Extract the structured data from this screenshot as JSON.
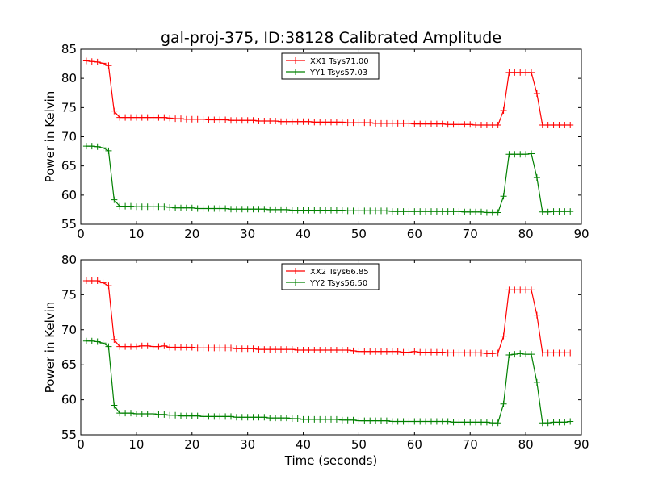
{
  "title": "gal-proj-375, ID:38128 Calibrated Amplitude",
  "chart_data": [
    {
      "type": "line",
      "ylabel": "Power in Kelvin",
      "xlabel": "",
      "xlim": [
        0,
        90
      ],
      "ylim": [
        55,
        85
      ],
      "xticks": [
        0,
        10,
        20,
        30,
        40,
        50,
        60,
        70,
        80,
        90
      ],
      "yticks": [
        55,
        60,
        65,
        70,
        75,
        80,
        85
      ],
      "legend_position": "top-center",
      "x": [
        1,
        2,
        3,
        4,
        5,
        6,
        7,
        8,
        9,
        10,
        11,
        12,
        13,
        14,
        15,
        16,
        17,
        18,
        19,
        20,
        21,
        22,
        23,
        24,
        25,
        26,
        27,
        28,
        29,
        30,
        31,
        32,
        33,
        34,
        35,
        36,
        37,
        38,
        39,
        40,
        41,
        42,
        43,
        44,
        45,
        46,
        47,
        48,
        49,
        50,
        51,
        52,
        53,
        54,
        55,
        56,
        57,
        58,
        59,
        60,
        61,
        62,
        63,
        64,
        65,
        66,
        67,
        68,
        69,
        70,
        71,
        72,
        73,
        74,
        75,
        76,
        77,
        78,
        79,
        80,
        81,
        82,
        83,
        84,
        85,
        86,
        87,
        88
      ],
      "series": [
        {
          "name": "XX1 Tsys71.00",
          "color": "#ff0000",
          "values": [
            83.0,
            82.9,
            82.8,
            82.6,
            82.2,
            74.4,
            73.3,
            73.3,
            73.3,
            73.3,
            73.3,
            73.3,
            73.3,
            73.3,
            73.3,
            73.2,
            73.1,
            73.1,
            73.0,
            73.0,
            73.0,
            73.0,
            72.9,
            72.9,
            72.9,
            72.9,
            72.8,
            72.8,
            72.8,
            72.8,
            72.8,
            72.7,
            72.7,
            72.7,
            72.7,
            72.6,
            72.6,
            72.6,
            72.6,
            72.6,
            72.6,
            72.5,
            72.5,
            72.5,
            72.5,
            72.5,
            72.5,
            72.4,
            72.4,
            72.4,
            72.4,
            72.4,
            72.3,
            72.3,
            72.3,
            72.3,
            72.3,
            72.3,
            72.3,
            72.2,
            72.2,
            72.2,
            72.2,
            72.2,
            72.2,
            72.1,
            72.1,
            72.1,
            72.1,
            72.1,
            72.0,
            72.0,
            72.0,
            72.0,
            72.0,
            74.5,
            81.0,
            81.0,
            81.0,
            81.0,
            81.0,
            77.4,
            72.0,
            72.0,
            72.0,
            72.0,
            72.0,
            72.0
          ]
        },
        {
          "name": "YY1 Tsys57.03",
          "color": "#008000",
          "values": [
            68.4,
            68.4,
            68.3,
            68.1,
            67.6,
            59.2,
            58.1,
            58.1,
            58.1,
            58.0,
            58.0,
            58.0,
            58.0,
            58.0,
            58.0,
            57.9,
            57.8,
            57.8,
            57.8,
            57.8,
            57.7,
            57.7,
            57.7,
            57.7,
            57.7,
            57.7,
            57.6,
            57.6,
            57.6,
            57.6,
            57.6,
            57.6,
            57.6,
            57.5,
            57.5,
            57.5,
            57.5,
            57.4,
            57.4,
            57.4,
            57.4,
            57.4,
            57.4,
            57.4,
            57.4,
            57.4,
            57.4,
            57.3,
            57.3,
            57.3,
            57.3,
            57.3,
            57.3,
            57.3,
            57.3,
            57.2,
            57.2,
            57.2,
            57.2,
            57.2,
            57.2,
            57.2,
            57.2,
            57.2,
            57.2,
            57.2,
            57.2,
            57.2,
            57.1,
            57.1,
            57.1,
            57.1,
            57.0,
            57.0,
            57.0,
            59.8,
            67.0,
            67.0,
            67.0,
            67.0,
            67.1,
            63.0,
            57.1,
            57.1,
            57.2,
            57.2,
            57.2,
            57.2
          ]
        }
      ]
    },
    {
      "type": "line",
      "ylabel": "Power in Kelvin",
      "xlabel": "Time (seconds)",
      "xlim": [
        0,
        90
      ],
      "ylim": [
        55,
        80
      ],
      "xticks": [
        0,
        10,
        20,
        30,
        40,
        50,
        60,
        70,
        80,
        90
      ],
      "yticks": [
        55,
        60,
        65,
        70,
        75,
        80
      ],
      "legend_position": "top-center",
      "x": [
        1,
        2,
        3,
        4,
        5,
        6,
        7,
        8,
        9,
        10,
        11,
        12,
        13,
        14,
        15,
        16,
        17,
        18,
        19,
        20,
        21,
        22,
        23,
        24,
        25,
        26,
        27,
        28,
        29,
        30,
        31,
        32,
        33,
        34,
        35,
        36,
        37,
        38,
        39,
        40,
        41,
        42,
        43,
        44,
        45,
        46,
        47,
        48,
        49,
        50,
        51,
        52,
        53,
        54,
        55,
        56,
        57,
        58,
        59,
        60,
        61,
        62,
        63,
        64,
        65,
        66,
        67,
        68,
        69,
        70,
        71,
        72,
        73,
        74,
        75,
        76,
        77,
        78,
        79,
        80,
        81,
        82,
        83,
        84,
        85,
        86,
        87,
        88
      ],
      "series": [
        {
          "name": "XX2 Tsys66.85",
          "color": "#ff0000",
          "values": [
            77.0,
            77.0,
            77.0,
            76.7,
            76.3,
            68.6,
            67.6,
            67.6,
            67.6,
            67.6,
            67.7,
            67.7,
            67.6,
            67.6,
            67.7,
            67.5,
            67.5,
            67.5,
            67.5,
            67.5,
            67.4,
            67.4,
            67.4,
            67.4,
            67.4,
            67.4,
            67.4,
            67.3,
            67.3,
            67.3,
            67.3,
            67.2,
            67.2,
            67.2,
            67.2,
            67.2,
            67.2,
            67.2,
            67.1,
            67.1,
            67.1,
            67.1,
            67.1,
            67.1,
            67.1,
            67.1,
            67.1,
            67.1,
            67.0,
            66.9,
            66.9,
            66.9,
            66.9,
            66.9,
            66.9,
            66.9,
            66.9,
            66.8,
            66.8,
            66.9,
            66.8,
            66.8,
            66.8,
            66.8,
            66.8,
            66.7,
            66.7,
            66.7,
            66.7,
            66.7,
            66.7,
            66.7,
            66.6,
            66.6,
            66.7,
            69.1,
            75.7,
            75.7,
            75.7,
            75.7,
            75.7,
            72.1,
            66.7,
            66.7,
            66.7,
            66.7,
            66.7,
            66.7
          ]
        },
        {
          "name": "YY2 Tsys56.50",
          "color": "#008000",
          "values": [
            68.4,
            68.4,
            68.3,
            68.1,
            67.6,
            59.2,
            58.1,
            58.1,
            58.1,
            58.0,
            58.0,
            58.0,
            58.0,
            57.9,
            57.9,
            57.8,
            57.8,
            57.7,
            57.7,
            57.7,
            57.7,
            57.6,
            57.6,
            57.6,
            57.6,
            57.6,
            57.6,
            57.5,
            57.5,
            57.5,
            57.5,
            57.5,
            57.5,
            57.4,
            57.4,
            57.4,
            57.4,
            57.3,
            57.3,
            57.2,
            57.2,
            57.2,
            57.2,
            57.2,
            57.2,
            57.2,
            57.1,
            57.1,
            57.1,
            57.0,
            57.0,
            57.0,
            57.0,
            57.0,
            57.0,
            56.9,
            56.9,
            56.9,
            56.9,
            56.9,
            56.9,
            56.9,
            56.9,
            56.9,
            56.9,
            56.9,
            56.8,
            56.8,
            56.8,
            56.8,
            56.8,
            56.8,
            56.8,
            56.7,
            56.7,
            59.4,
            66.4,
            66.5,
            66.6,
            66.5,
            66.5,
            62.5,
            56.7,
            56.7,
            56.8,
            56.8,
            56.8,
            56.9
          ]
        }
      ]
    }
  ]
}
